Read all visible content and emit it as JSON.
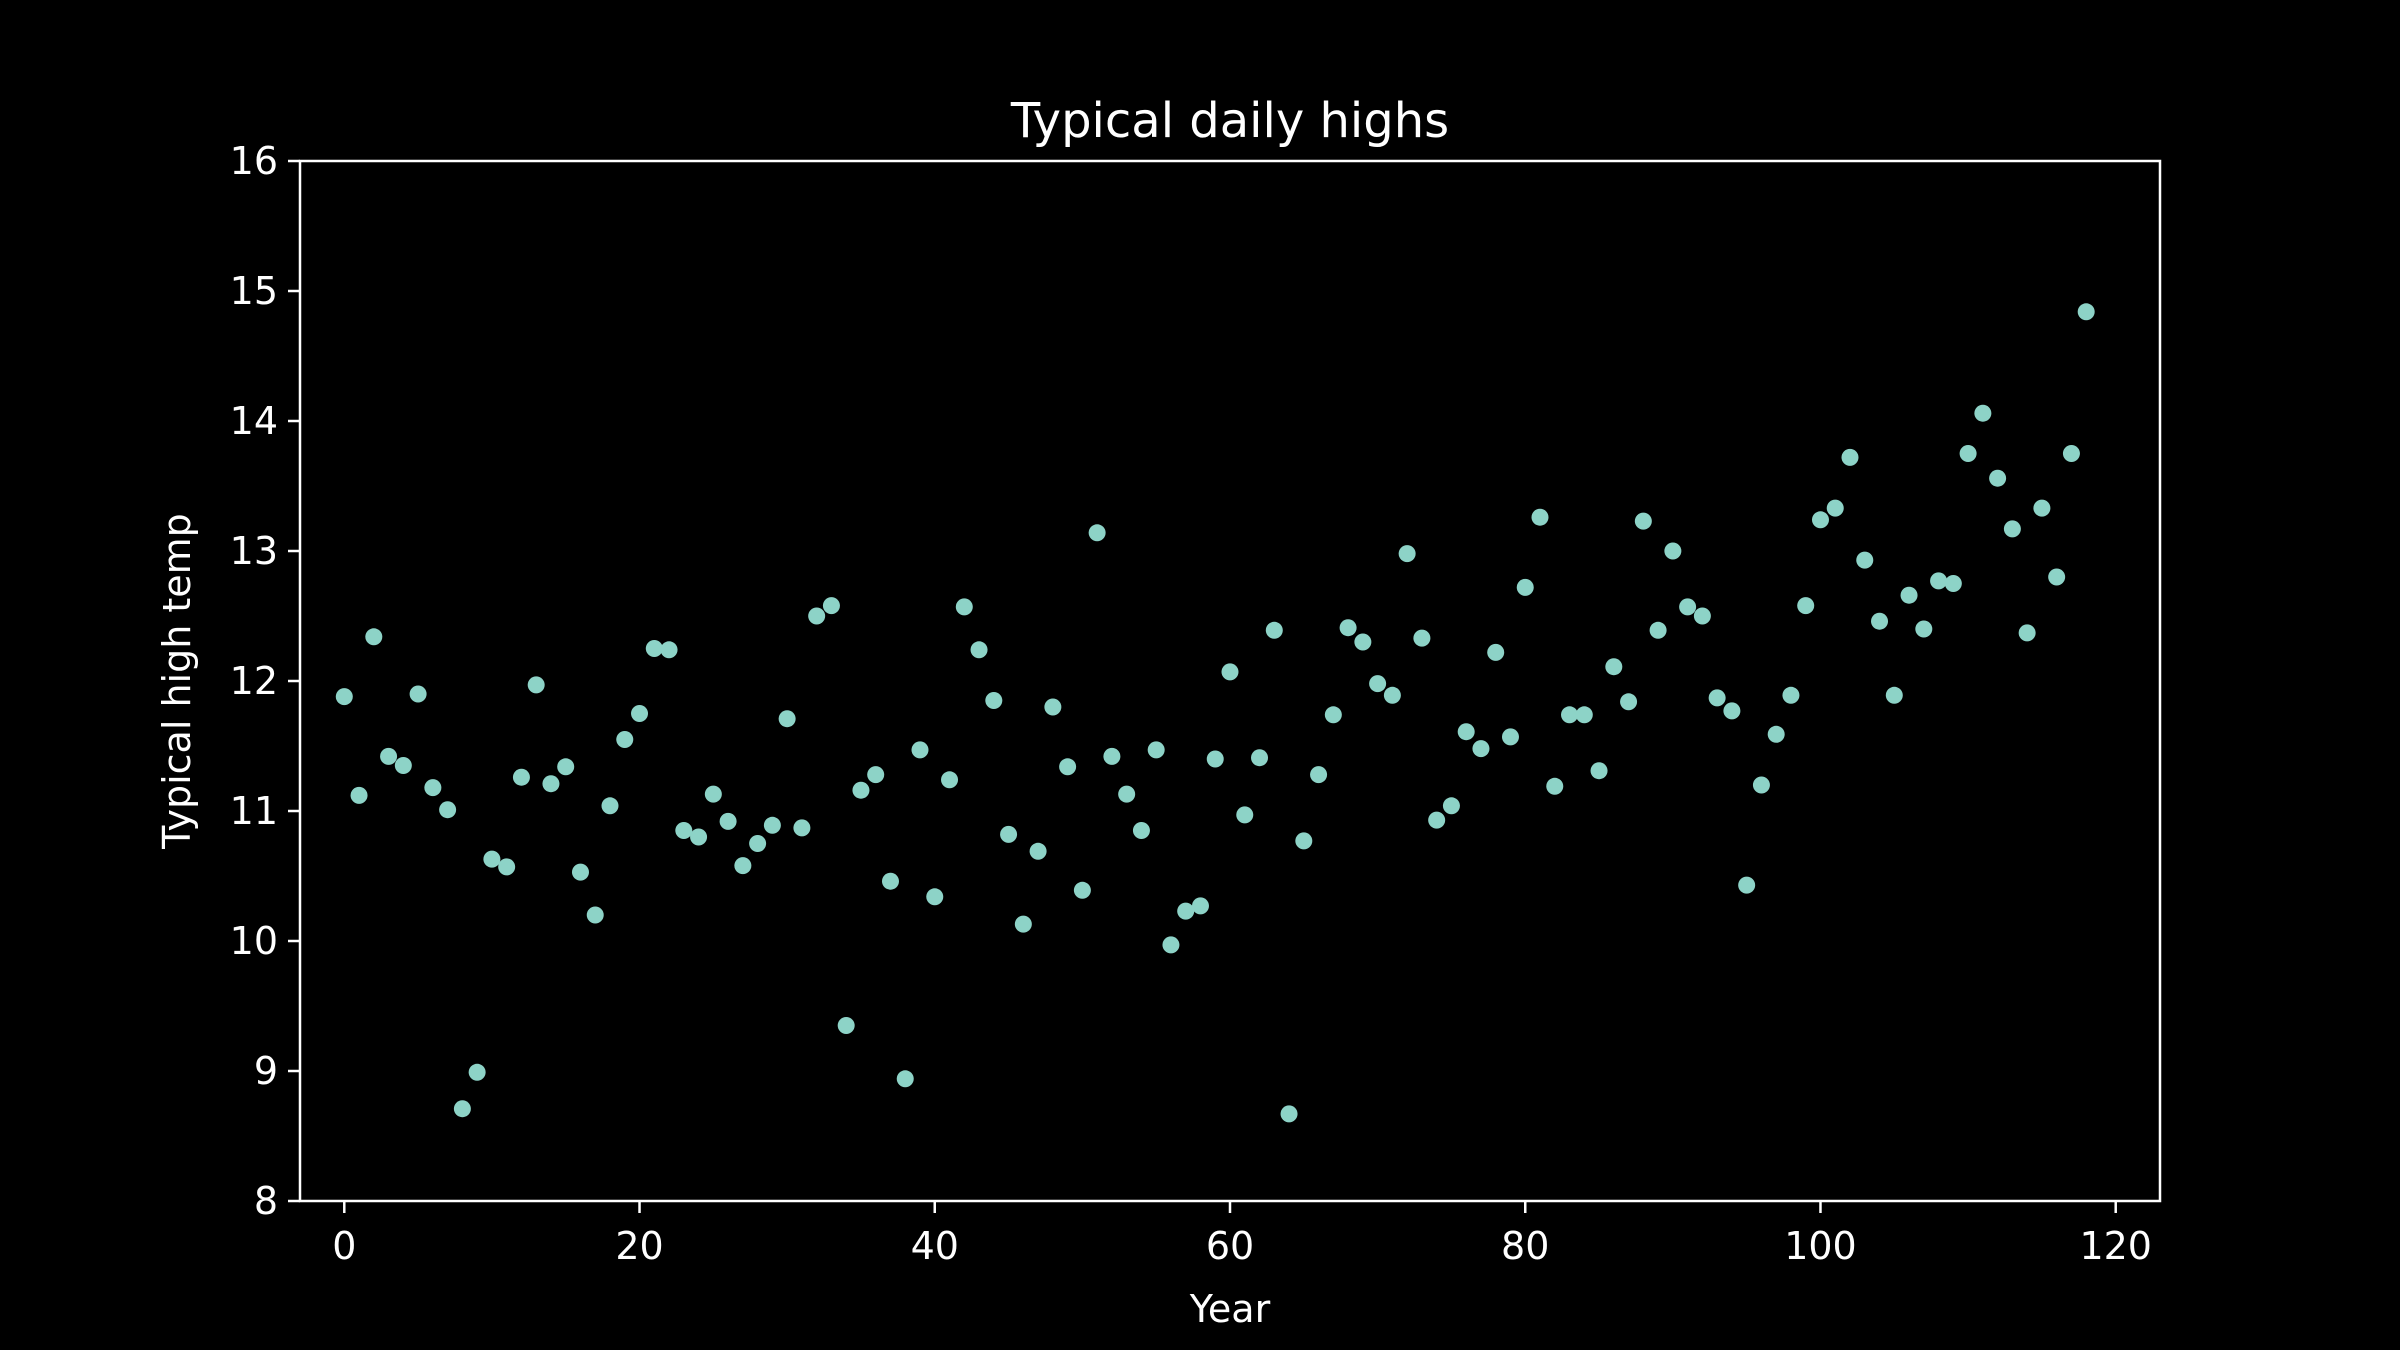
{
  "chart_data": {
    "type": "scatter",
    "title": "Typical daily highs",
    "xlabel": "Year",
    "ylabel": "Typical high temp",
    "xlim": [
      -3,
      123
    ],
    "ylim": [
      8,
      16
    ],
    "xticks": [
      0,
      20,
      40,
      60,
      80,
      100,
      120
    ],
    "yticks": [
      8,
      9,
      10,
      11,
      12,
      13,
      14,
      15,
      16
    ],
    "grid": false,
    "colors": {
      "background": "#000000",
      "axes": "#ffffff",
      "text": "#ffffff",
      "marker": "#8dd3c7"
    },
    "series": [
      {
        "x": [
          0,
          1,
          2,
          3,
          4,
          5,
          6,
          7,
          8,
          9,
          10,
          11,
          12,
          13,
          14,
          15,
          16,
          17,
          18,
          19,
          20,
          21,
          22,
          23,
          24,
          25,
          26,
          27,
          28,
          29,
          30,
          31,
          32,
          33,
          34,
          35,
          36,
          37,
          38,
          39,
          40,
          41,
          42,
          43,
          44,
          45,
          46,
          47,
          48,
          49,
          50,
          51,
          52,
          53,
          54,
          55,
          56,
          57,
          58,
          59,
          60,
          61,
          62,
          63,
          64,
          65,
          66,
          67,
          68,
          69,
          70,
          71,
          72,
          73,
          74,
          75,
          76,
          77,
          78,
          79,
          80,
          81,
          82,
          83,
          84,
          85,
          86,
          87,
          88,
          89,
          90,
          91,
          92,
          93,
          94,
          95,
          96,
          97,
          98,
          99,
          100,
          101,
          102,
          103,
          104,
          105,
          106,
          107,
          108,
          109,
          110,
          111,
          112,
          113,
          114,
          115,
          116,
          117,
          118
        ],
        "y": [
          11.88,
          11.12,
          12.34,
          11.42,
          11.35,
          11.9,
          11.18,
          11.01,
          8.71,
          8.99,
          10.63,
          10.57,
          11.26,
          11.97,
          11.21,
          11.34,
          10.53,
          10.2,
          11.04,
          11.55,
          11.75,
          12.25,
          12.24,
          10.85,
          10.8,
          11.13,
          10.92,
          10.58,
          10.75,
          10.89,
          11.71,
          10.87,
          12.5,
          12.58,
          9.35,
          11.16,
          11.28,
          10.46,
          8.94,
          11.47,
          10.34,
          11.24,
          12.57,
          12.24,
          11.85,
          10.82,
          10.13,
          10.69,
          11.8,
          11.34,
          10.39,
          13.14,
          11.42,
          11.13,
          10.85,
          11.47,
          9.97,
          10.23,
          10.27,
          11.4,
          12.07,
          10.97,
          11.41,
          12.39,
          8.67,
          10.77,
          11.28,
          11.74,
          12.41,
          12.3,
          11.98,
          11.89,
          12.98,
          12.33,
          10.93,
          11.04,
          11.61,
          11.48,
          12.22,
          11.57,
          12.72,
          13.26,
          11.19,
          11.74,
          11.74,
          11.31,
          12.11,
          11.84,
          13.23,
          12.39,
          13,
          12.57,
          12.5,
          11.87,
          11.77,
          10.43,
          11.2,
          11.59,
          11.89,
          12.58,
          13.24,
          13.33,
          13.72,
          12.93,
          12.46,
          11.89,
          12.66,
          12.4,
          12.77,
          12.75,
          13.75,
          14.06,
          13.56,
          13.17,
          12.37,
          13.33,
          12.8,
          13.75,
          14.84
        ]
      }
    ]
  }
}
